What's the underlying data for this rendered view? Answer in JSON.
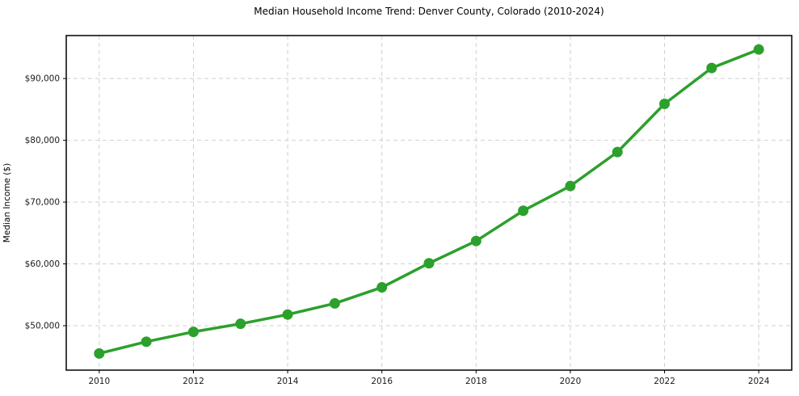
{
  "figure": {
    "background": "#ffffff"
  },
  "chart_data": {
    "type": "line",
    "title": "Median Household Income Trend: Denver County, Colorado (2010-2024)",
    "xlabel": "",
    "ylabel": "Median Income ($)",
    "x": [
      2010,
      2011,
      2012,
      2013,
      2014,
      2015,
      2016,
      2017,
      2018,
      2019,
      2020,
      2021,
      2022,
      2023,
      2024
    ],
    "series": [
      {
        "color": "#2ca02c",
        "values": [
          45500,
          47400,
          49000,
          50300,
          51800,
          53600,
          56200,
          60100,
          63700,
          68600,
          72600,
          78100,
          85900,
          91700,
          94700
        ]
      }
    ],
    "xlim": [
      2009.3,
      2024.7
    ],
    "ylim": [
      42800,
      96950
    ],
    "xticks": [
      2010,
      2012,
      2014,
      2016,
      2018,
      2020,
      2022,
      2024
    ],
    "xtick_labels": [
      "2010",
      "2012",
      "2014",
      "2016",
      "2018",
      "2020",
      "2022",
      "2024"
    ],
    "yticks": [
      50000,
      60000,
      70000,
      80000,
      90000
    ],
    "ytick_labels": [
      "$50,000",
      "$60,000",
      "$70,000",
      "$80,000",
      "$90,000"
    ],
    "grid": true,
    "grid_style": "dashed",
    "legend": "none",
    "marker": "circle",
    "grid_color": "#d0d0d0",
    "spine_color": "#000000",
    "tick_label_color": "#1a1a1a"
  }
}
